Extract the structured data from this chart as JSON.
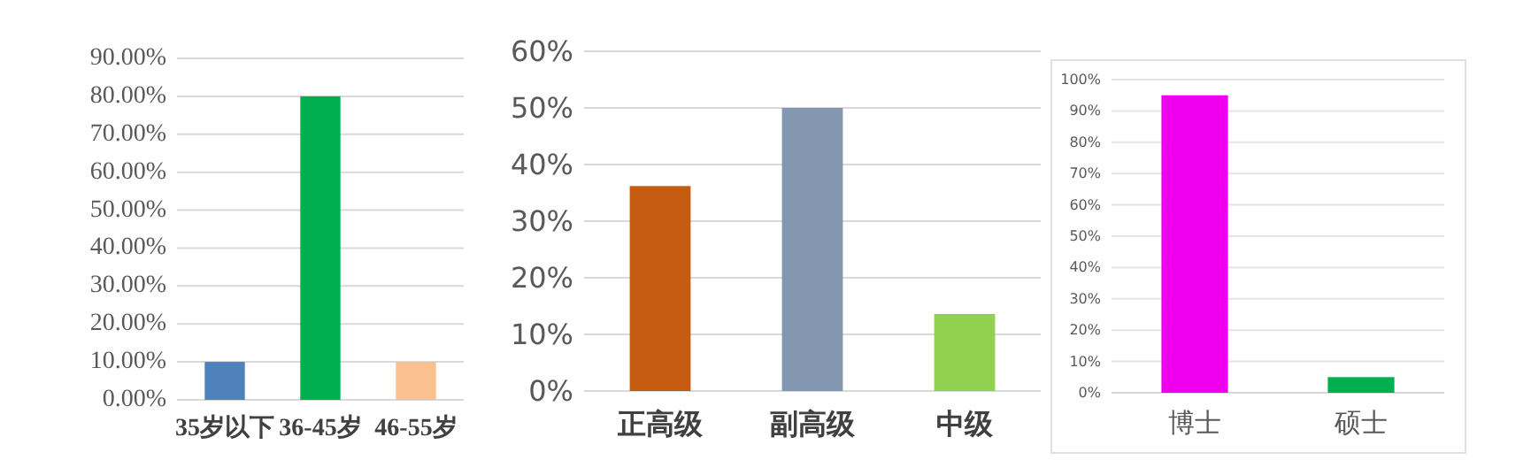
{
  "chart_data": [
    {
      "type": "bar",
      "categories": [
        "35岁以下",
        "36-45岁",
        "46-55岁"
      ],
      "values": [
        10,
        80,
        10
      ],
      "colors": [
        "#4f81bd",
        "#00b050",
        "#fac090"
      ],
      "ylim": [
        0,
        90
      ],
      "yticks": [
        {
          "value": 0,
          "label": "0.00%"
        },
        {
          "value": 10,
          "label": "10.00%"
        },
        {
          "value": 20,
          "label": "20.00%"
        },
        {
          "value": 30,
          "label": "30.00%"
        },
        {
          "value": 40,
          "label": "40.00%"
        },
        {
          "value": 50,
          "label": "50.00%"
        },
        {
          "value": 60,
          "label": "60.00%"
        },
        {
          "value": 70,
          "label": "70.00%"
        },
        {
          "value": 80,
          "label": "80.00%"
        },
        {
          "value": 90,
          "label": "90.00%"
        }
      ],
      "grid": "y"
    },
    {
      "type": "bar",
      "categories": [
        "正高级",
        "副高级",
        "中级"
      ],
      "values": [
        36.2,
        50,
        13.6
      ],
      "colors": [
        "#c55a11",
        "#8497b0",
        "#92d050"
      ],
      "ylim": [
        0,
        60
      ],
      "yticks": [
        {
          "value": 0,
          "label": "0%"
        },
        {
          "value": 10,
          "label": "10%"
        },
        {
          "value": 20,
          "label": "20%"
        },
        {
          "value": 30,
          "label": "30%"
        },
        {
          "value": 40,
          "label": "40%"
        },
        {
          "value": 50,
          "label": "50%"
        },
        {
          "value": 60,
          "label": "60%"
        }
      ],
      "grid": "y"
    },
    {
      "type": "bar",
      "categories": [
        "博士",
        "硕士"
      ],
      "values": [
        95,
        5
      ],
      "colors": [
        "#ee00ee",
        "#00b050"
      ],
      "ylim": [
        0,
        100
      ],
      "yticks": [
        {
          "value": 0,
          "label": "0%"
        },
        {
          "value": 10,
          "label": "10%"
        },
        {
          "value": 20,
          "label": "20%"
        },
        {
          "value": 30,
          "label": "30%"
        },
        {
          "value": 40,
          "label": "40%"
        },
        {
          "value": 50,
          "label": "50%"
        },
        {
          "value": 60,
          "label": "60%"
        },
        {
          "value": 70,
          "label": "70%"
        },
        {
          "value": 80,
          "label": "80%"
        },
        {
          "value": 90,
          "label": "90%"
        },
        {
          "value": 100,
          "label": "100%"
        }
      ],
      "grid": "y"
    }
  ]
}
